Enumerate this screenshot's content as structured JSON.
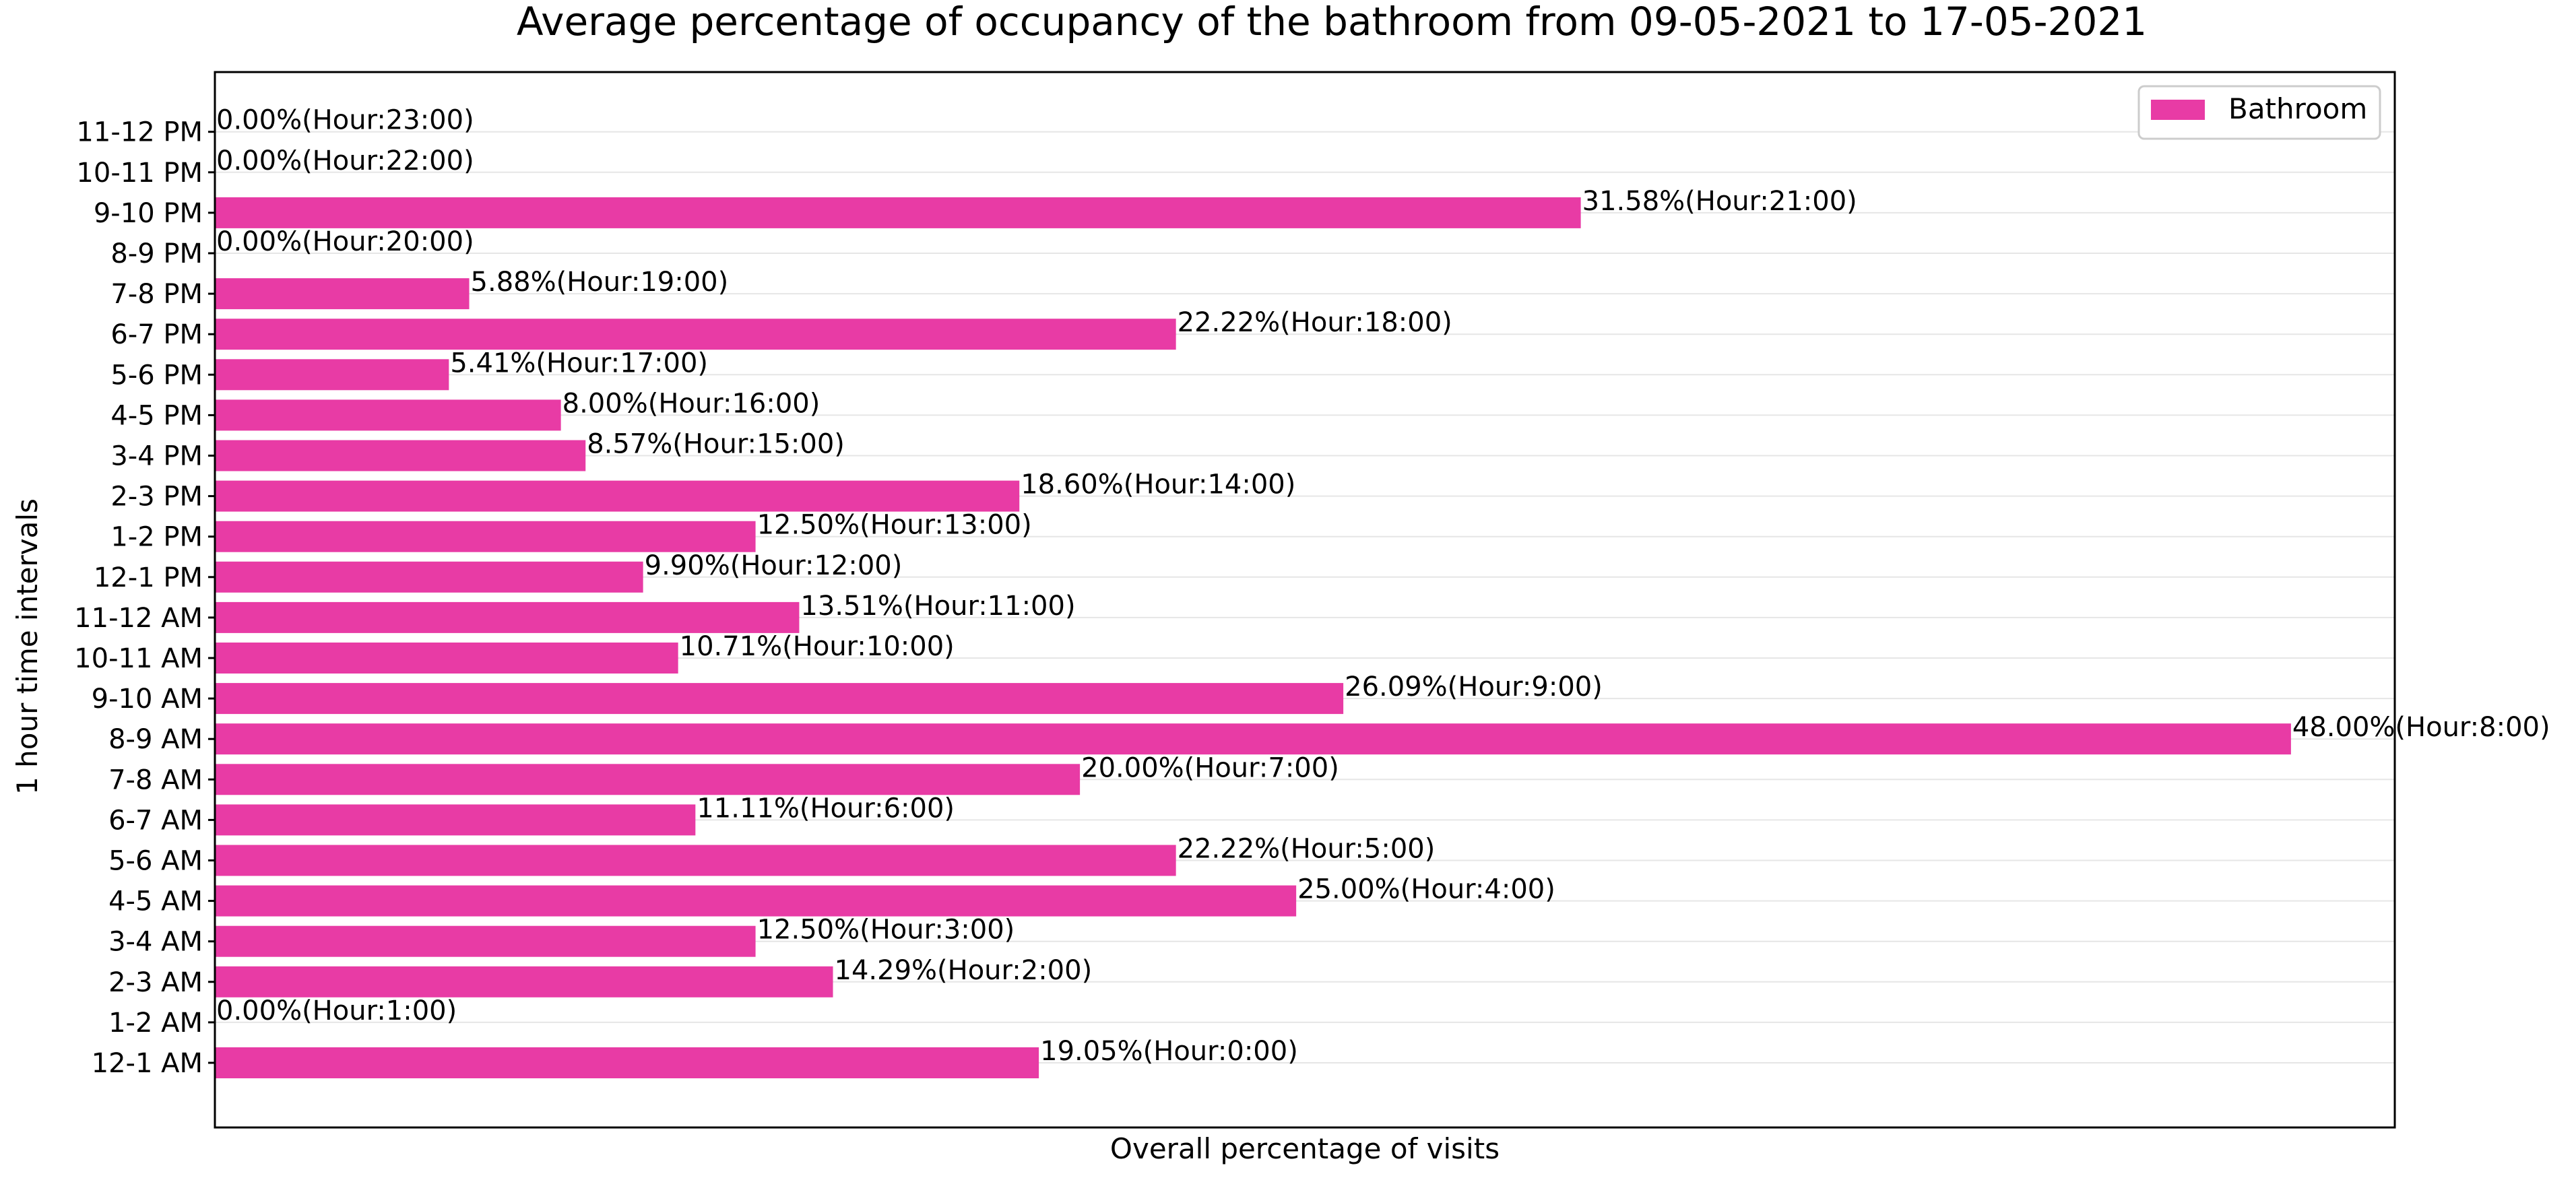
{
  "chart_data": {
    "type": "bar",
    "orientation": "horizontal",
    "title": "Average percentage of occupancy of the bathroom from 09-05-2021 to 17-05-2021",
    "xlabel": "Overall percentage of visits",
    "ylabel": "1 hour time intervals",
    "legend": {
      "position": "top-right",
      "entries": [
        "Bathroom"
      ]
    },
    "grid": {
      "y": true,
      "x": false
    },
    "x_ticks_visible": false,
    "xlim": [
      0,
      50.4
    ],
    "series": [
      {
        "name": "Bathroom",
        "color": "#e83ba5",
        "categories": [
          "12-1 AM",
          "1-2 AM",
          "2-3 AM",
          "3-4 AM",
          "4-5 AM",
          "5-6 AM",
          "6-7 AM",
          "7-8 AM",
          "8-9 AM",
          "9-10 AM",
          "10-11 AM",
          "11-12 AM",
          "12-1 PM",
          "1-2 PM",
          "2-3 PM",
          "3-4 PM",
          "4-5 PM",
          "5-6 PM",
          "6-7 PM",
          "7-8 PM",
          "8-9 PM",
          "9-10 PM",
          "10-11 PM",
          "11-12 PM"
        ],
        "values": [
          19.05,
          0.0,
          14.29,
          12.5,
          25.0,
          22.22,
          11.11,
          20.0,
          48.0,
          26.09,
          10.71,
          13.51,
          9.9,
          12.5,
          18.6,
          8.57,
          8.0,
          5.41,
          22.22,
          5.88,
          0.0,
          31.58,
          0.0,
          0.0
        ],
        "data_labels": [
          "19.05%(Hour:0:00)",
          "0.00%(Hour:1:00)",
          "14.29%(Hour:2:00)",
          "12.50%(Hour:3:00)",
          "25.00%(Hour:4:00)",
          "22.22%(Hour:5:00)",
          "11.11%(Hour:6:00)",
          "20.00%(Hour:7:00)",
          "48.00%(Hour:8:00)",
          "26.09%(Hour:9:00)",
          "10.71%(Hour:10:00)",
          "13.51%(Hour:11:00)",
          "9.90%(Hour:12:00)",
          "12.50%(Hour:13:00)",
          "18.60%(Hour:14:00)",
          "8.57%(Hour:15:00)",
          "8.00%(Hour:16:00)",
          "5.41%(Hour:17:00)",
          "22.22%(Hour:18:00)",
          "5.88%(Hour:19:00)",
          "0.00%(Hour:20:00)",
          "31.58%(Hour:21:00)",
          "0.00%(Hour:22:00)",
          "0.00%(Hour:23:00)"
        ]
      }
    ]
  }
}
